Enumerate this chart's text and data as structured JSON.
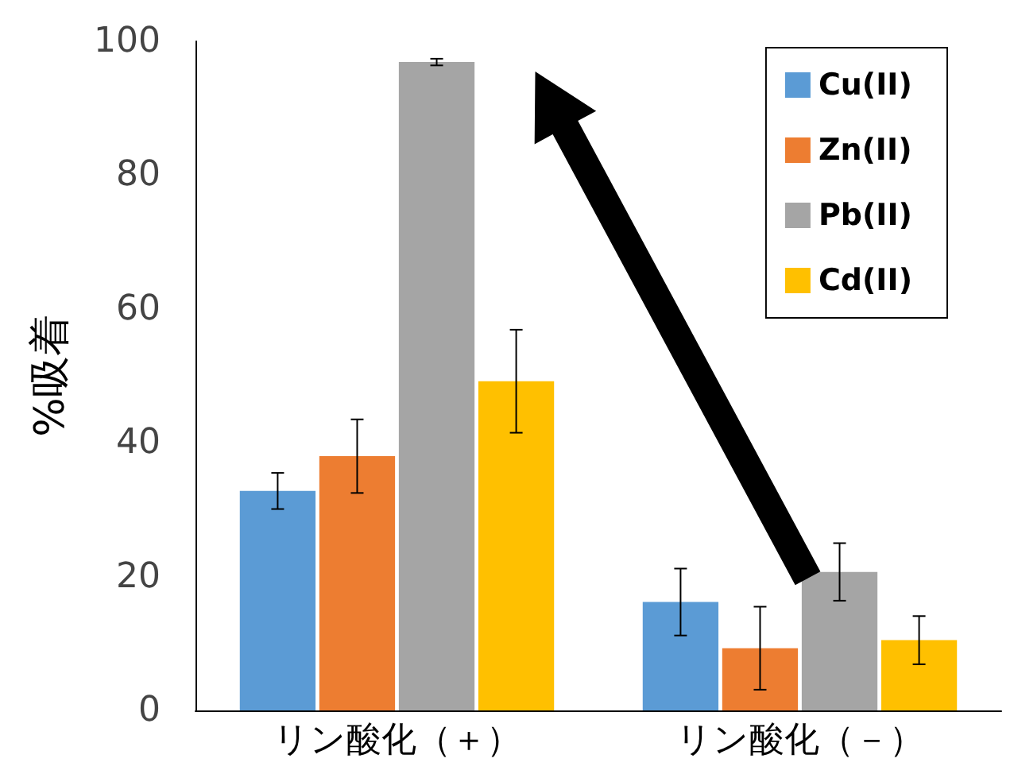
{
  "chart_data": {
    "type": "bar",
    "ylabel": "%吸着",
    "categories": [
      "リン酸化（＋）",
      "リン酸化（－）"
    ],
    "series": [
      {
        "name": "Cu(II)",
        "color": "#5b9bd5",
        "values": [
          32.8,
          16.2
        ],
        "errors": [
          2.7,
          5
        ]
      },
      {
        "name": "Zn(II)",
        "color": "#ed7d31",
        "values": [
          38,
          9.3
        ],
        "errors": [
          5.5,
          6.2
        ]
      },
      {
        "name": "Pb(II)",
        "color": "#a5a5a5",
        "values": [
          96.9,
          20.7
        ],
        "errors": [
          0.5,
          4.3
        ]
      },
      {
        "name": "Cd(II)",
        "color": "#ffc000",
        "values": [
          49.2,
          10.5
        ],
        "errors": [
          7.7,
          3.6
        ]
      }
    ],
    "ylim": [
      0,
      100
    ],
    "yticks": [
      0,
      20,
      40,
      60,
      80,
      100
    ],
    "grid": false,
    "legend": "top right"
  }
}
